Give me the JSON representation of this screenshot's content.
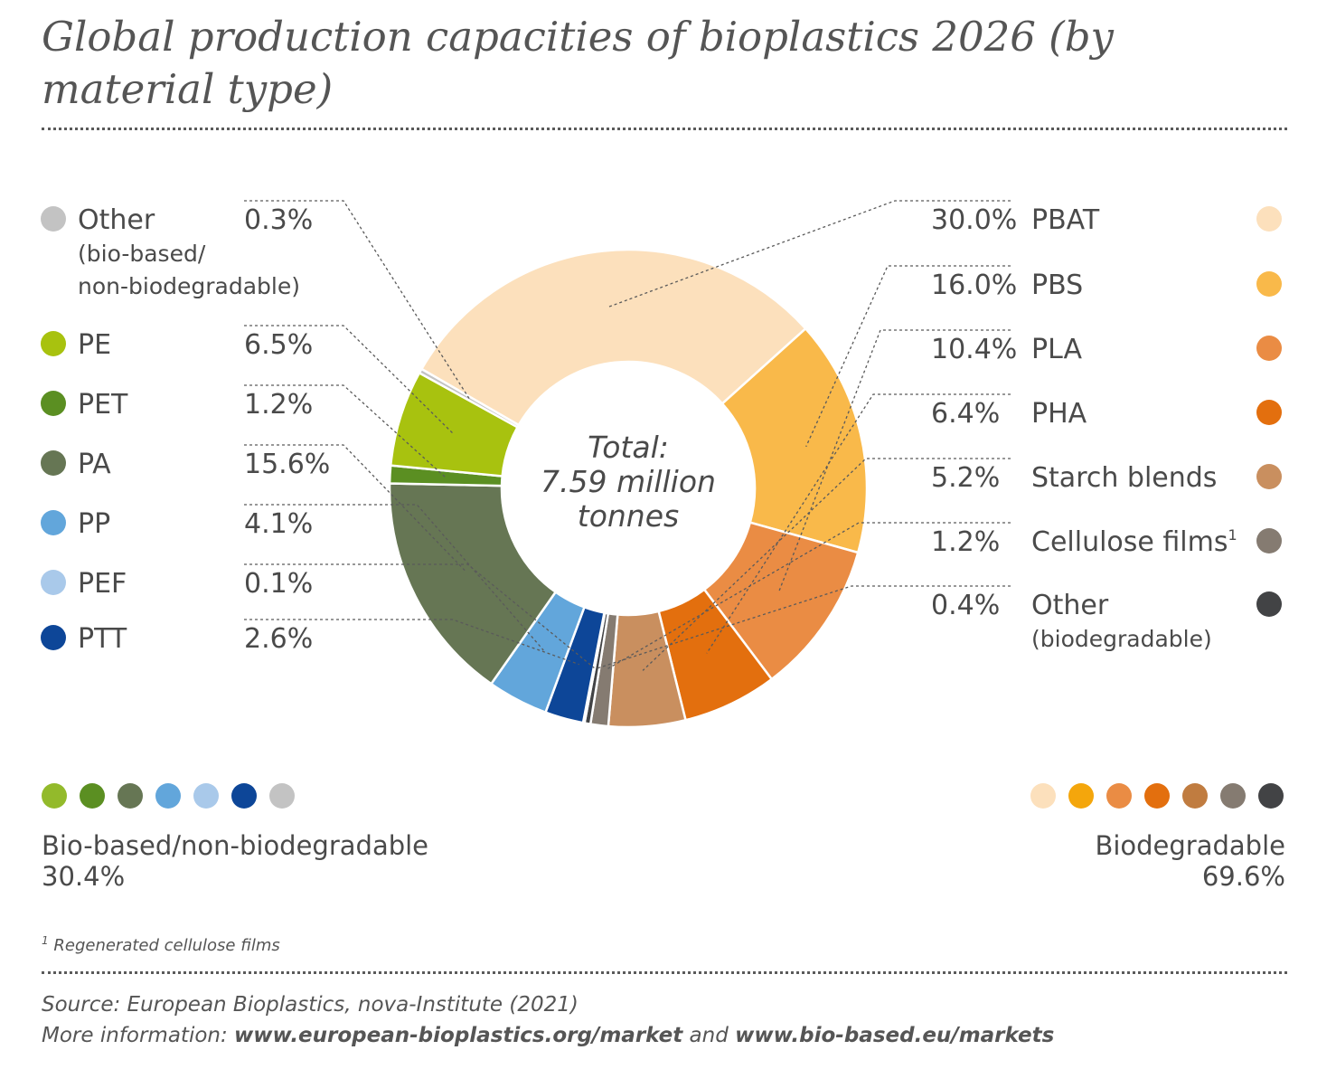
{
  "title": "Global production capacities of bioplastics 2026 (by material type)",
  "chart_data": {
    "type": "pie",
    "style": "donut",
    "title": "Global production capacities of bioplastics 2026 (by material type)",
    "center_label": [
      "Total:",
      "7.59 million",
      "tonnes"
    ],
    "unit": "%",
    "slices": [
      {
        "label": "PBAT",
        "value": 30.0,
        "value_label": "30.0%",
        "color": "#fce0bc",
        "group": "Biodegradable"
      },
      {
        "label": "PBS",
        "value": 16.0,
        "value_label": "16.0%",
        "color": "#f9b94a",
        "group": "Biodegradable"
      },
      {
        "label": "PLA",
        "value": 10.4,
        "value_label": "10.4%",
        "color": "#ea8c44",
        "group": "Biodegradable"
      },
      {
        "label": "PHA",
        "value": 6.4,
        "value_label": "6.4%",
        "color": "#e36f0e",
        "group": "Biodegradable"
      },
      {
        "label": "Starch blends",
        "value": 5.2,
        "value_label": "5.2%",
        "color": "#c98f5f",
        "group": "Biodegradable"
      },
      {
        "label": "Cellulose films",
        "value": 1.2,
        "value_label": "1.2%",
        "color": "#857b71",
        "group": "Biodegradable"
      },
      {
        "label": "Other (biodegradable)",
        "value": 0.4,
        "value_label": "0.4%",
        "color": "#424345",
        "group": "Biodegradable"
      },
      {
        "label": "PEF",
        "value": 0.1,
        "value_label": "0.1%",
        "color": "#a9c9ea",
        "group": "Bio-based/non-biodegradable"
      },
      {
        "label": "PTT",
        "value": 2.6,
        "value_label": "2.6%",
        "color": "#0d4698",
        "group": "Bio-based/non-biodegradable"
      },
      {
        "label": "PP",
        "value": 4.1,
        "value_label": "4.1%",
        "color": "#62a6db",
        "group": "Bio-based/non-biodegradable"
      },
      {
        "label": "PA",
        "value": 15.6,
        "value_label": "15.6%",
        "color": "#667654",
        "group": "Bio-based/non-biodegradable"
      },
      {
        "label": "PET",
        "value": 1.2,
        "value_label": "1.2%",
        "color": "#5b8f22",
        "group": "Bio-based/non-biodegradable"
      },
      {
        "label": "PE",
        "value": 6.5,
        "value_label": "6.5%",
        "color": "#a8c20f",
        "group": "Bio-based/non-biodegradable"
      },
      {
        "label": "Other (bio-based/ non-biodegradable)",
        "value": 0.3,
        "value_label": "0.3%",
        "color": "#c3c3c3",
        "group": "Bio-based/non-biodegradable"
      }
    ],
    "left_legend": [
      {
        "lines": [
          "Other",
          "(bio-based/",
          "non-biodegradable)"
        ],
        "value_label": "0.3%",
        "color": "#c3c3c3"
      },
      {
        "lines": [
          "PE"
        ],
        "value_label": "6.5%",
        "color": "#a8c20f"
      },
      {
        "lines": [
          "PET"
        ],
        "value_label": "1.2%",
        "color": "#5b8f22"
      },
      {
        "lines": [
          "PA"
        ],
        "value_label": "15.6%",
        "color": "#667654"
      },
      {
        "lines": [
          "PP"
        ],
        "value_label": "4.1%",
        "color": "#62a6db"
      },
      {
        "lines": [
          "PEF"
        ],
        "value_label": "0.1%",
        "color": "#a9c9ea"
      },
      {
        "lines": [
          "PTT"
        ],
        "value_label": "2.6%",
        "color": "#0d4698"
      }
    ],
    "right_legend": [
      {
        "lines": [
          "PBAT"
        ],
        "value_label": "30.0%",
        "color": "#fce0bc"
      },
      {
        "lines": [
          "PBS"
        ],
        "value_label": "16.0%",
        "color": "#f9b94a"
      },
      {
        "lines": [
          "PLA"
        ],
        "value_label": "10.4%",
        "color": "#ea8c44"
      },
      {
        "lines": [
          "PHA"
        ],
        "value_label": "6.4%",
        "color": "#e36f0e"
      },
      {
        "lines": [
          "Starch blends"
        ],
        "value_label": "5.2%",
        "color": "#c98f5f"
      },
      {
        "lines": [
          "Cellulose films"
        ],
        "sup": "1",
        "value_label": "1.2%",
        "color": "#857b71"
      },
      {
        "lines": [
          "Other",
          "(biodegradable)"
        ],
        "value_label": "0.4%",
        "color": "#424345"
      }
    ],
    "groups": [
      {
        "name": "Bio-based/non-biodegradable",
        "value": 30.4,
        "value_label": "30.4%",
        "colors": [
          "#93ba2b",
          "#5b8f22",
          "#667654",
          "#62a6db",
          "#a9c9ea",
          "#0d4698",
          "#c3c3c3"
        ]
      },
      {
        "name": "Biodegradable",
        "value": 69.6,
        "value_label": "69.6%",
        "colors": [
          "#fce0bc",
          "#f4a60c",
          "#ea8c44",
          "#e36f0e",
          "#c07c40",
          "#857b71",
          "#424345"
        ]
      }
    ]
  },
  "footnote": {
    "mark": "1",
    "text": " Regenerated cellulose films"
  },
  "source": {
    "line1": "Source: European Bioplastics, nova-Institute (2021)",
    "prefix": "More information: ",
    "link1": "www.european-bioplastics.org/market",
    "and": " and ",
    "link2": "www.bio-based.eu/markets"
  }
}
